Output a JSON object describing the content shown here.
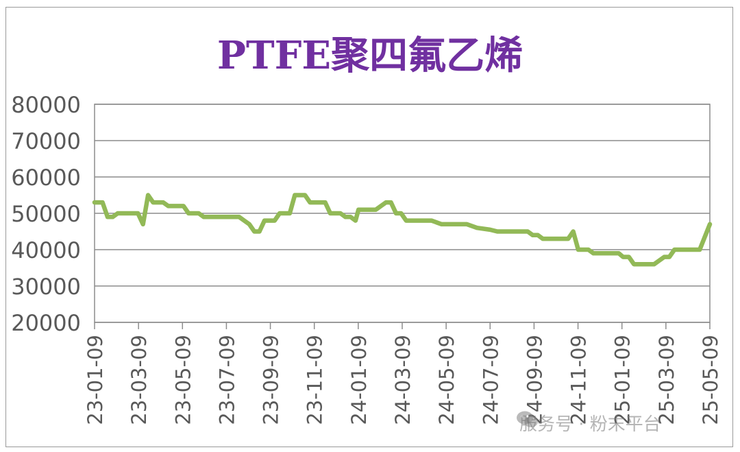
{
  "chart_data": {
    "type": "line",
    "title": "PTFE聚四氟乙烯",
    "xlabel": "",
    "ylabel": "",
    "ylim": [
      20000,
      80000
    ],
    "yticks": [
      20000,
      30000,
      40000,
      50000,
      60000,
      70000,
      80000
    ],
    "xtick_labels": [
      "23-01-09",
      "23-03-09",
      "23-05-09",
      "23-07-09",
      "23-09-09",
      "23-11-09",
      "24-01-09",
      "24-03-09",
      "24-05-09",
      "24-07-09",
      "24-09-09",
      "24-11-09",
      "25-01-09",
      "25-03-09",
      "25-05-09"
    ],
    "grid": true,
    "legend": "none",
    "line_color": "#92b957",
    "series": [
      {
        "x": [
          "2023-01-09",
          "2023-01-20",
          "2023-01-27",
          "2023-02-03",
          "2023-02-10",
          "2023-02-17",
          "2023-02-24",
          "2023-03-03",
          "2023-03-10",
          "2023-03-17",
          "2023-03-24",
          "2023-03-31",
          "2023-04-07",
          "2023-04-14",
          "2023-04-21",
          "2023-04-28",
          "2023-05-05",
          "2023-05-12",
          "2023-05-19",
          "2023-05-26",
          "2023-06-02",
          "2023-06-09",
          "2023-06-16",
          "2023-06-23",
          "2023-06-30",
          "2023-07-07",
          "2023-07-14",
          "2023-07-21",
          "2023-07-28",
          "2023-08-04",
          "2023-08-11",
          "2023-08-18",
          "2023-08-25",
          "2023-09-01",
          "2023-09-08",
          "2023-09-15",
          "2023-09-22",
          "2023-09-29",
          "2023-10-06",
          "2023-10-13",
          "2023-10-20",
          "2023-10-27",
          "2023-11-03",
          "2023-11-10",
          "2023-11-17",
          "2023-11-24",
          "2023-12-01",
          "2023-12-08",
          "2023-12-15",
          "2023-12-22",
          "2023-12-29",
          "2024-01-05",
          "2024-01-09",
          "2024-01-19",
          "2024-01-26",
          "2024-02-02",
          "2024-02-09",
          "2024-02-16",
          "2024-02-23",
          "2024-03-01",
          "2024-03-08",
          "2024-03-15",
          "2024-03-22",
          "2024-03-29",
          "2024-04-09",
          "2024-04-19",
          "2024-05-03",
          "2024-05-09",
          "2024-05-24",
          "2024-06-07",
          "2024-06-21",
          "2024-07-09",
          "2024-07-19",
          "2024-08-02",
          "2024-08-16",
          "2024-08-30",
          "2024-09-06",
          "2024-09-13",
          "2024-09-20",
          "2024-09-30",
          "2024-10-11",
          "2024-10-18",
          "2024-10-25",
          "2024-11-01",
          "2024-11-08",
          "2024-11-15",
          "2024-11-22",
          "2024-11-29",
          "2024-12-06",
          "2024-12-13",
          "2024-12-20",
          "2024-12-27",
          "2025-01-03",
          "2025-01-09",
          "2025-01-17",
          "2025-01-24",
          "2025-02-07",
          "2025-02-14",
          "2025-02-21",
          "2025-02-28",
          "2025-03-07",
          "2025-03-14",
          "2025-03-21",
          "2025-03-28",
          "2025-04-04",
          "2025-04-11",
          "2025-04-18",
          "2025-04-25",
          "2025-05-09"
        ],
        "values": [
          53000,
          53000,
          49000,
          49000,
          50000,
          50000,
          50000,
          50000,
          50000,
          47000,
          55000,
          53000,
          53000,
          53000,
          52000,
          52000,
          52000,
          52000,
          50000,
          50000,
          50000,
          49000,
          49000,
          49000,
          49000,
          49000,
          49000,
          49000,
          49000,
          48000,
          47000,
          45000,
          45000,
          48000,
          48000,
          48000,
          50000,
          50000,
          50000,
          55000,
          55000,
          55000,
          53000,
          53000,
          53000,
          53000,
          50000,
          50000,
          50000,
          49000,
          49000,
          48000,
          51000,
          51000,
          51000,
          51000,
          52000,
          53000,
          53000,
          50000,
          50000,
          48000,
          48000,
          48000,
          48000,
          48000,
          47000,
          47000,
          47000,
          47000,
          46000,
          45500,
          45000,
          45000,
          45000,
          45000,
          44000,
          44000,
          43000,
          43000,
          43000,
          43000,
          43000,
          45000,
          40000,
          40000,
          40000,
          39000,
          39000,
          39000,
          39000,
          39000,
          39000,
          38000,
          38000,
          36000,
          36000,
          36000,
          36000,
          37000,
          38000,
          38000,
          40000,
          40000,
          40000,
          40000,
          40000,
          40000,
          47000
        ]
      }
    ]
  },
  "watermark": {
    "text": "服务号 · 粉末平台",
    "icon": "wechat-icon"
  }
}
